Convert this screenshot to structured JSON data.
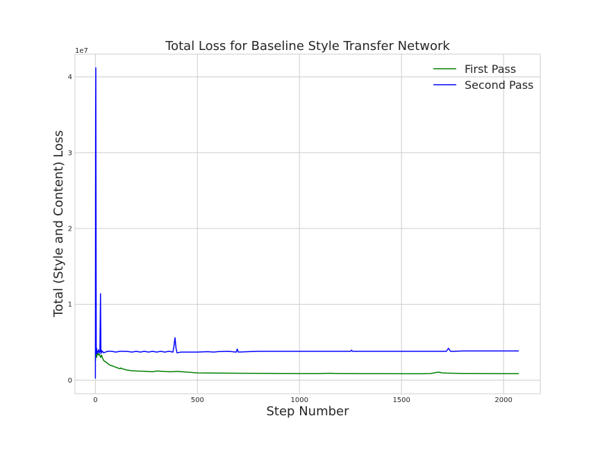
{
  "chart_data": {
    "type": "line",
    "title": "Total Loss for Baseline Style Transfer Network",
    "xlabel": "Step Number",
    "ylabel": "Total (Style and Content) Loss",
    "y_offset_label": "1e7",
    "xlim": [
      -100,
      2180
    ],
    "ylim": [
      -1800000,
      43000000
    ],
    "x_ticks": [
      0,
      500,
      1000,
      1500,
      2000
    ],
    "x_tick_labels": [
      "0",
      "500",
      "1000",
      "1500",
      "2000"
    ],
    "y_ticks": [
      0,
      10000000,
      20000000,
      30000000,
      40000000
    ],
    "y_tick_labels": [
      "0",
      "1",
      "2",
      "3",
      "4"
    ],
    "grid": true,
    "legend_position": "top-right",
    "colors": {
      "first_pass": "#008000",
      "second_pass": "#0000ff",
      "grid": "#cccccc",
      "frame": "#cccccc"
    },
    "series": [
      {
        "name": "First Pass",
        "color": "#008000",
        "x": [
          0,
          2,
          4,
          6,
          8,
          10,
          12,
          15,
          18,
          22,
          26,
          30,
          35,
          40,
          50,
          60,
          70,
          80,
          90,
          100,
          110,
          120,
          125,
          130,
          140,
          150,
          175,
          200,
          250,
          280,
          300,
          330,
          370,
          400,
          450,
          500,
          600,
          700,
          800,
          900,
          1000,
          1100,
          1150,
          1180,
          1200,
          1300,
          1400,
          1500,
          1600,
          1640,
          1660,
          1680,
          1700,
          1720,
          1750,
          1800,
          1900,
          2000,
          2075
        ],
        "y": [
          2500000,
          4200000,
          3300000,
          3000000,
          3500000,
          3800000,
          3400000,
          3300000,
          3500000,
          3200000,
          3000000,
          3300000,
          2900000,
          2600000,
          2400000,
          2200000,
          2000000,
          1900000,
          1800000,
          1700000,
          1600000,
          1500000,
          1600000,
          1500000,
          1450000,
          1350000,
          1250000,
          1200000,
          1150000,
          1100000,
          1200000,
          1150000,
          1100000,
          1150000,
          1050000,
          950000,
          920000,
          900000,
          890000,
          880000,
          870000,
          870000,
          900000,
          880000,
          870000,
          860000,
          860000,
          850000,
          850000,
          870000,
          950000,
          1050000,
          950000,
          920000,
          900000,
          880000,
          870000,
          860000,
          860000
        ]
      },
      {
        "name": "Second Pass",
        "color": "#0000ff",
        "x": [
          0,
          1,
          2,
          3,
          4,
          5,
          6,
          7,
          8,
          10,
          12,
          15,
          18,
          20,
          22,
          25,
          27,
          30,
          32,
          35,
          40,
          50,
          60,
          80,
          100,
          120,
          150,
          180,
          200,
          220,
          240,
          260,
          280,
          300,
          320,
          340,
          360,
          380,
          385,
          390,
          395,
          400,
          420,
          450,
          500,
          550,
          580,
          600,
          650,
          690,
          695,
          700,
          750,
          800,
          900,
          1000,
          1100,
          1200,
          1250,
          1255,
          1260,
          1300,
          1400,
          1500,
          1600,
          1700,
          1720,
          1730,
          1740,
          1760,
          1800,
          1900,
          2000,
          2075
        ],
        "y": [
          200000,
          35000000,
          41200000,
          22000000,
          3500000,
          3600000,
          4200000,
          3500000,
          3800000,
          3600000,
          3800000,
          4000000,
          3600000,
          3700000,
          3800000,
          11400000,
          3500000,
          3900000,
          3700000,
          3800000,
          3600000,
          3700000,
          3800000,
          3800000,
          3700000,
          3800000,
          3800000,
          3700000,
          3800000,
          3700000,
          3800000,
          3700000,
          3800000,
          3700000,
          3800000,
          3700000,
          3800000,
          3700000,
          4500000,
          5600000,
          4200000,
          3600000,
          3700000,
          3700000,
          3700000,
          3750000,
          3700000,
          3750000,
          3800000,
          3700000,
          4100000,
          3700000,
          3750000,
          3800000,
          3800000,
          3800000,
          3800000,
          3800000,
          3800000,
          3950000,
          3800000,
          3800000,
          3800000,
          3800000,
          3800000,
          3800000,
          3800000,
          4200000,
          3800000,
          3800000,
          3850000,
          3850000,
          3850000,
          3850000
        ]
      }
    ]
  }
}
